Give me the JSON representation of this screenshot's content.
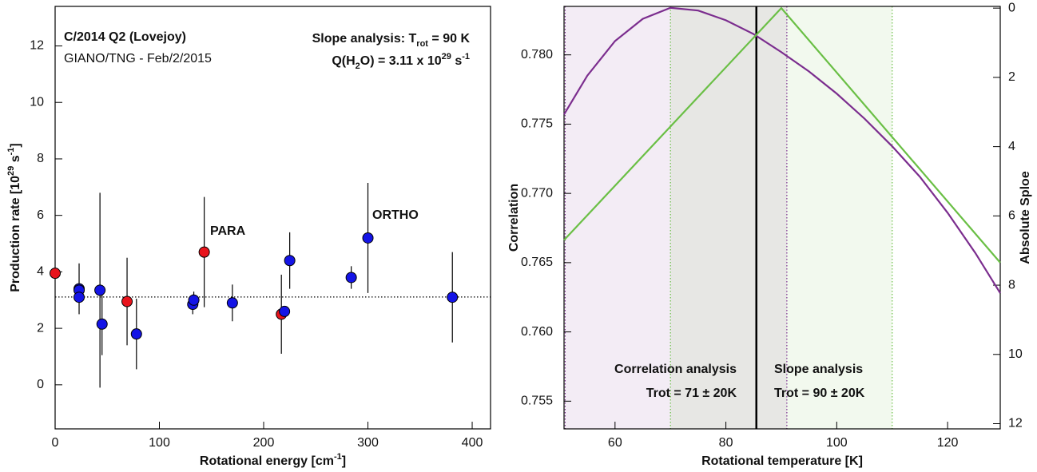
{
  "chart_data": [
    {
      "type": "scatter",
      "annotations": [
        [
          {
            "text": "C/2014 Q2 (Lovejoy)"
          }
        ],
        [
          {
            "text": "GIANO/TNG - Feb/2/2015"
          }
        ],
        [
          {
            "text": "Slope analysis: T"
          },
          {
            "sub": "rot"
          },
          {
            "text": " = 90 K"
          }
        ],
        [
          {
            "text": "Q(H"
          },
          {
            "sub": "2"
          },
          {
            "text": "O) = 3.11 x 10"
          },
          {
            "sup": "29"
          },
          {
            "text": " s"
          },
          {
            "sup": "-1"
          }
        ]
      ],
      "xlabel": [
        {
          "text": "Rotational energy [cm"
        },
        {
          "sup": "-1"
        },
        {
          "text": "]"
        }
      ],
      "ylabel": [
        {
          "text": "Production rate [10"
        },
        {
          "sup": "29"
        },
        {
          "text": " s"
        },
        {
          "sup": "-1"
        },
        {
          "text": "]"
        }
      ],
      "xlim": [
        0,
        417.6
      ],
      "xticks": [
        0,
        100,
        200,
        300,
        400
      ],
      "ylim": [
        -1.56,
        13.4
      ],
      "yticks": [
        0,
        2,
        4,
        6,
        8,
        10,
        12
      ],
      "hline": 3.11,
      "series": [
        {
          "name": "PARA",
          "color": "#e8141c",
          "x": [
            0,
            69,
            143,
            217
          ],
          "values": [
            3.95,
            2.95,
            4.7,
            2.5
          ],
          "errors": [
            null,
            1.55,
            1.95,
            1.4
          ]
        },
        {
          "name": "ORTHO",
          "color": "#1414e6",
          "x": [
            23,
            23,
            23,
            43,
            45,
            78,
            132,
            133,
            170,
            220,
            225,
            284,
            300,
            381
          ],
          "values": [
            3.4,
            3.35,
            3.1,
            3.35,
            2.15,
            1.8,
            2.85,
            3.0,
            2.9,
            2.6,
            4.4,
            3.8,
            5.2,
            3.1
          ],
          "errors": [
            0.9,
            null,
            null,
            3.45,
            1.1,
            1.25,
            0.35,
            0.3,
            0.65,
            null,
            1.0,
            0.4,
            1.95,
            1.6
          ]
        }
      ]
    },
    {
      "type": "line",
      "xlabel": [
        {
          "text": "Rotational temperature [K]"
        }
      ],
      "ylabel": [
        {
          "text": "Correlation"
        }
      ],
      "y2label": [
        {
          "text": "Absolute Sploe"
        }
      ],
      "xlim": [
        50.8,
        129.5
      ],
      "xticks": [
        60,
        80,
        100,
        120
      ],
      "ylim": [
        0.753,
        0.7835
      ],
      "yticks": [
        {
          "value": 0.755,
          "label": "0.755"
        },
        {
          "value": 0.76,
          "label": "0.760"
        },
        {
          "value": 0.765,
          "label": "0.765"
        },
        {
          "value": 0.77,
          "label": "0.770"
        },
        {
          "value": 0.775,
          "label": "0.775"
        },
        {
          "value": 0.78,
          "label": "0.780"
        }
      ],
      "y2lim": [
        12.15,
        -0.05
      ],
      "y2ticks": [
        0,
        2,
        4,
        6,
        8,
        10,
        12
      ],
      "regions": [
        {
          "from": 51,
          "to": 91,
          "color": "#7b2d8e"
        },
        {
          "from": 70,
          "to": 110,
          "color": "#6abf45"
        }
      ],
      "vline": 85.5,
      "series": [
        {
          "color": "#7b2d8e",
          "x": [
            50.8,
            55,
            60,
            65,
            70,
            75,
            80,
            85,
            90,
            95,
            100,
            105,
            110,
            115,
            120,
            125,
            129.5
          ],
          "values": [
            0.7757,
            0.7785,
            0.781,
            0.7826,
            0.7834,
            0.7832,
            0.7825,
            0.7815,
            0.7802,
            0.7788,
            0.7772,
            0.7754,
            0.7734,
            0.7712,
            0.7686,
            0.7657,
            0.7628
          ]
        },
        {
          "color": "#6abf45",
          "axis": "y2",
          "x": [
            50.8,
            90,
            129.5
          ],
          "values": [
            6.7,
            0,
            7.35
          ]
        }
      ],
      "annotations": [
        {
          "text": "Correlation analysis",
          "color": "#7b2d8e"
        },
        {
          "text": "Trot = 71 ± 20K",
          "color": "#7b2d8e"
        },
        {
          "text": "Slope analysis",
          "color": "#6abf45"
        },
        {
          "text": "Trot = 90 ± 20K",
          "color": "#6abf45"
        }
      ]
    }
  ]
}
